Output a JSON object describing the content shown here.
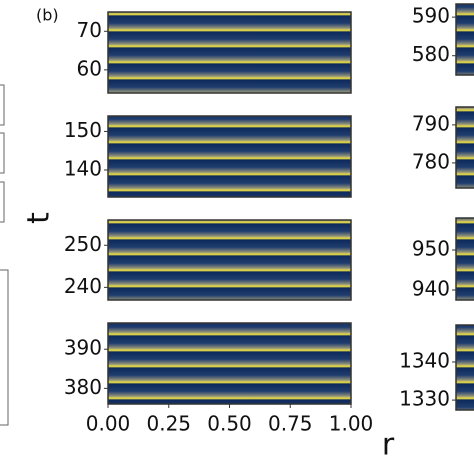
{
  "panel_label": "(b)",
  "y_label": "t",
  "x_label": "r",
  "chart_data": [
    {
      "type": "heatmap",
      "ylim": [
        54,
        75
      ],
      "yticks": [
        60,
        70
      ]
    },
    {
      "type": "heatmap",
      "ylim": [
        133,
        154
      ],
      "yticks": [
        140,
        150
      ]
    },
    {
      "type": "heatmap",
      "ylim": [
        237,
        256
      ],
      "yticks": [
        240,
        250
      ]
    },
    {
      "type": "heatmap",
      "ylim": [
        376,
        396.7
      ],
      "yticks": [
        380,
        390
      ],
      "xlim": [
        0,
        1
      ],
      "xticks": [
        {
          "value": 0,
          "label": "0.00"
        },
        {
          "value": 0.25,
          "label": "0.25"
        },
        {
          "value": 0.5,
          "label": "0.50"
        },
        {
          "value": 0.75,
          "label": "0.75"
        },
        {
          "value": 1,
          "label": "1.00"
        }
      ]
    },
    {
      "type": "heatmap",
      "ylim": [
        575,
        593.4
      ],
      "yticks": [
        580,
        590
      ]
    },
    {
      "type": "heatmap",
      "ylim": [
        773.4,
        794.7
      ],
      "yticks": [
        780,
        790
      ]
    },
    {
      "type": "heatmap",
      "ylim": [
        937.5,
        958
      ],
      "yticks": [
        940,
        950
      ]
    },
    {
      "type": "heatmap",
      "ylim": [
        1327.4,
        1349.7
      ],
      "yticks": [
        1330,
        1340
      ]
    }
  ]
}
